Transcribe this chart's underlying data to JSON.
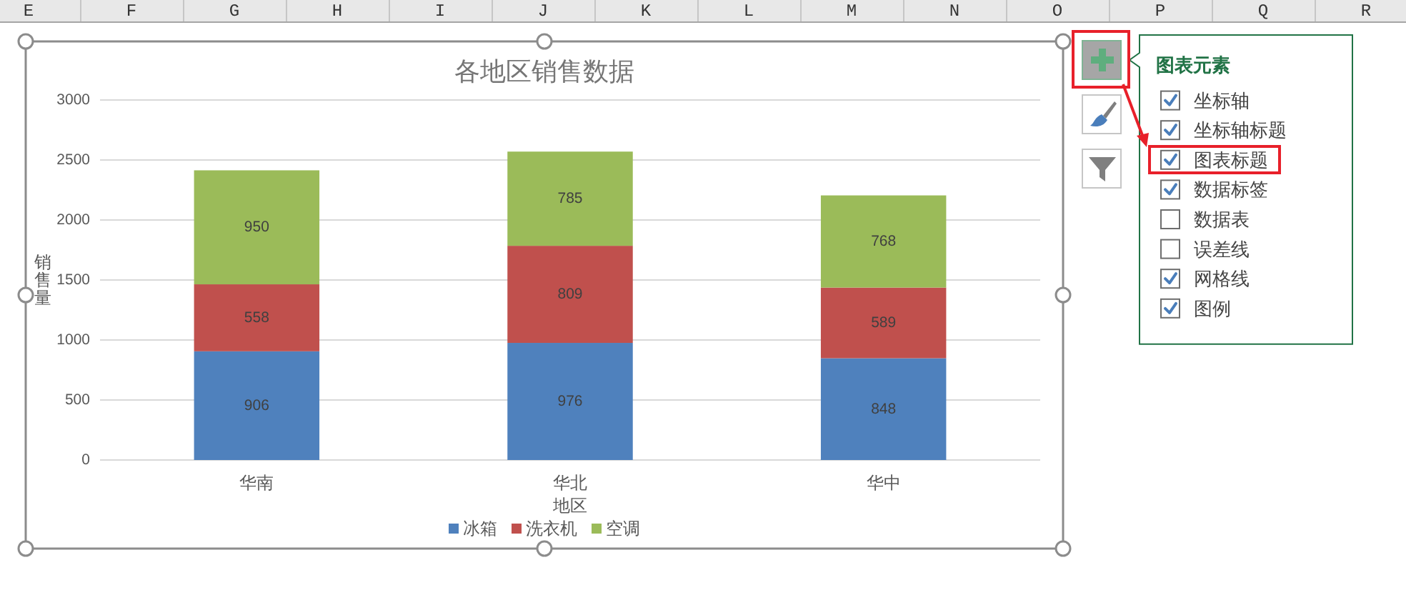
{
  "chart_data": [
    {
      "type": "other",
      "annotations": [
        "E",
        "F",
        "G",
        "H",
        "I",
        "J",
        "K",
        "L",
        "M",
        "N",
        "O",
        "P",
        "Q",
        "R"
      ]
    },
    {
      "type": "bar",
      "title": "各地区销售数据",
      "xlabel": "地区",
      "ylabel": "销售量",
      "categories": [
        "华南",
        "华北",
        "华中"
      ],
      "series": [
        {
          "name": "冰箱",
          "color": "#4f81bd",
          "values": [
            906,
            976,
            848
          ]
        },
        {
          "name": "洗衣机",
          "color": "#c0504d",
          "values": [
            558,
            809,
            589
          ]
        },
        {
          "name": "空调",
          "color": "#9bbb59",
          "values": [
            950,
            785,
            768
          ]
        }
      ],
      "stacked": true,
      "ylim": [
        0,
        3000
      ],
      "yticks": [
        0,
        500,
        1000,
        1500,
        2000,
        2500,
        3000
      ],
      "grid": "y",
      "legend": "bottom",
      "data_labels": true
    },
    {
      "type": "other",
      "title": "图表元素",
      "annotations": [
        "坐标轴",
        "坐标轴标题",
        "图表标题",
        "数据标签",
        "数据表",
        "误差线",
        "网格线",
        "图例"
      ]
    }
  ]
}
